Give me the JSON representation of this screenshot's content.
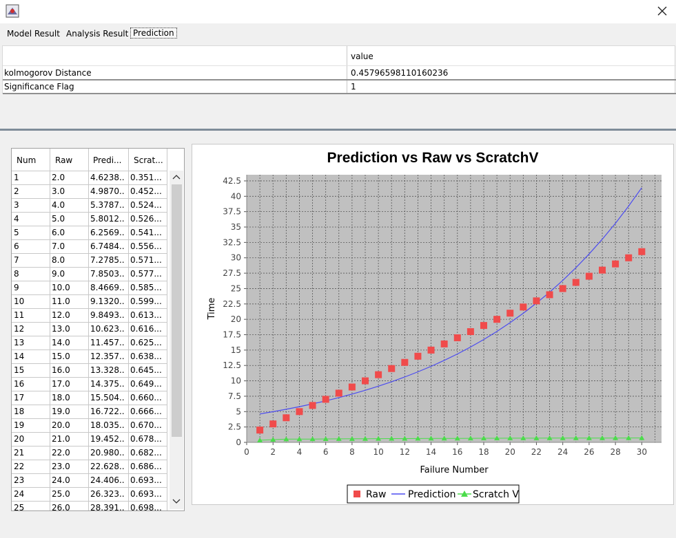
{
  "window": {
    "close_glyph": "✕"
  },
  "tabs": [
    {
      "label": "Model Result"
    },
    {
      "label": "Analysis Result"
    },
    {
      "label": "Prediction"
    }
  ],
  "result_table": {
    "header_value": "value",
    "rows": [
      {
        "name": "kolmogorov Distance",
        "value": "0.45796598110160236"
      },
      {
        "name": "Significance Flag",
        "value": "1"
      }
    ]
  },
  "data_grid": {
    "headers": [
      "Num",
      "Raw",
      "Predi...",
      "Scrat..."
    ],
    "rows": [
      [
        "1",
        "2.0",
        "4.6238...",
        "0.351..."
      ],
      [
        "2",
        "3.0",
        "4.9870...",
        "0.452..."
      ],
      [
        "3",
        "4.0",
        "5.3787...",
        "0.524..."
      ],
      [
        "4",
        "5.0",
        "5.8012...",
        "0.526..."
      ],
      [
        "5",
        "6.0",
        "6.2569...",
        "0.541..."
      ],
      [
        "6",
        "7.0",
        "6.7484...",
        "0.556..."
      ],
      [
        "7",
        "8.0",
        "7.2785...",
        "0.571..."
      ],
      [
        "8",
        "9.0",
        "7.8503...",
        "0.577..."
      ],
      [
        "9",
        "10.0",
        "8.4669...",
        "0.585..."
      ],
      [
        "10",
        "11.0",
        "9.1320...",
        "0.599..."
      ],
      [
        "11",
        "12.0",
        "9.8493...",
        "0.613..."
      ],
      [
        "12",
        "13.0",
        "10.623...",
        "0.616..."
      ],
      [
        "13",
        "14.0",
        "11.457...",
        "0.625..."
      ],
      [
        "14",
        "15.0",
        "12.357...",
        "0.638..."
      ],
      [
        "15",
        "16.0",
        "13.328...",
        "0.645..."
      ],
      [
        "16",
        "17.0",
        "14.375...",
        "0.649..."
      ],
      [
        "17",
        "18.0",
        "15.504...",
        "0.660..."
      ],
      [
        "18",
        "19.0",
        "16.722...",
        "0.666..."
      ],
      [
        "19",
        "20.0",
        "18.035...",
        "0.670..."
      ],
      [
        "20",
        "21.0",
        "19.452...",
        "0.678..."
      ],
      [
        "21",
        "22.0",
        "20.980...",
        "0.682..."
      ],
      [
        "22",
        "23.0",
        "22.628...",
        "0.686..."
      ],
      [
        "23",
        "24.0",
        "24.406...",
        "0.693..."
      ],
      [
        "24",
        "25.0",
        "26.323...",
        "0.693..."
      ],
      [
        "25",
        "26.0",
        "28.391...",
        "0.698..."
      ]
    ]
  },
  "chart_data": {
    "type": "line",
    "title": "Prediction vs Raw vs ScratchV",
    "xlabel": "Failure Number",
    "ylabel": "Time",
    "xlim": [
      0,
      31.5
    ],
    "ylim": [
      0,
      43.5
    ],
    "xticks": [
      0,
      2,
      4,
      6,
      8,
      10,
      12,
      14,
      16,
      18,
      20,
      22,
      24,
      26,
      28,
      30
    ],
    "yticks": [
      0,
      2.5,
      5,
      7.5,
      10,
      12.5,
      15,
      17.5,
      20,
      22.5,
      25,
      27.5,
      30,
      32.5,
      35,
      37.5,
      40,
      42.5
    ],
    "grid": true,
    "legend_position": "bottom",
    "colors": {
      "raw": "#f04b4b",
      "prediction": "#4b4bf0",
      "scratch": "#4bdc4b",
      "plot_bg": "#c0c0c0"
    },
    "series": [
      {
        "name": "Raw",
        "kind": "square",
        "x": [
          1,
          2,
          3,
          4,
          5,
          6,
          7,
          8,
          9,
          10,
          11,
          12,
          13,
          14,
          15,
          16,
          17,
          18,
          19,
          20,
          21,
          22,
          23,
          24,
          25,
          26,
          27,
          28,
          29,
          30
        ],
        "values": [
          2,
          3,
          4,
          5,
          6,
          7,
          8,
          9,
          10,
          11,
          12,
          13,
          14,
          15,
          16,
          17,
          18,
          19,
          20,
          21,
          22,
          23,
          24,
          25,
          26,
          27,
          28,
          29,
          30,
          31
        ]
      },
      {
        "name": "Prediction",
        "kind": "line",
        "x": [
          1,
          2,
          3,
          4,
          5,
          6,
          7,
          8,
          9,
          10,
          11,
          12,
          13,
          14,
          15,
          16,
          17,
          18,
          19,
          20,
          21,
          22,
          23,
          24,
          25,
          26,
          27,
          28,
          29,
          30
        ],
        "values": [
          4.6238,
          4.987,
          5.3787,
          5.8012,
          6.2569,
          6.7484,
          7.2785,
          7.8503,
          8.4669,
          9.132,
          9.8493,
          10.623,
          11.457,
          12.357,
          13.328,
          14.375,
          15.504,
          16.722,
          18.035,
          19.452,
          20.98,
          22.628,
          24.406,
          26.323,
          28.391,
          30.62,
          33.02,
          35.6,
          38.4,
          41.4
        ]
      },
      {
        "name": "Scratch V",
        "kind": "triangle",
        "x": [
          1,
          2,
          3,
          4,
          5,
          6,
          7,
          8,
          9,
          10,
          11,
          12,
          13,
          14,
          15,
          16,
          17,
          18,
          19,
          20,
          21,
          22,
          23,
          24,
          25,
          26,
          27,
          28,
          29,
          30
        ],
        "values": [
          0.351,
          0.452,
          0.524,
          0.526,
          0.541,
          0.556,
          0.571,
          0.577,
          0.585,
          0.599,
          0.613,
          0.616,
          0.625,
          0.638,
          0.645,
          0.649,
          0.66,
          0.666,
          0.67,
          0.678,
          0.682,
          0.686,
          0.693,
          0.693,
          0.698,
          0.7,
          0.705,
          0.71,
          0.712,
          0.715
        ]
      }
    ]
  }
}
